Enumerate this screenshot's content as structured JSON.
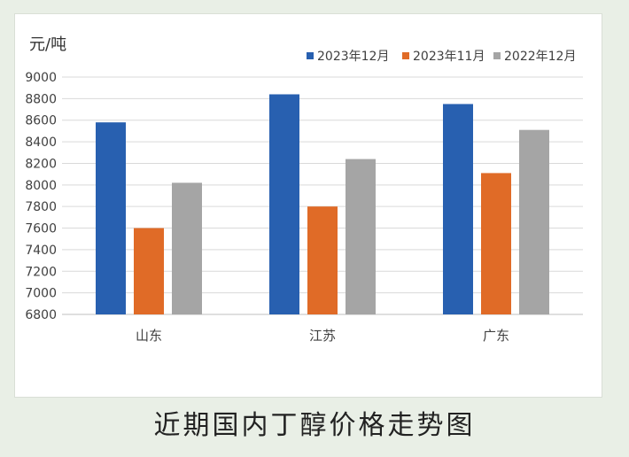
{
  "caption": "近期国内丁醇价格走势图",
  "chart_data": {
    "type": "bar",
    "title": "",
    "ylabel": "元/吨",
    "xlabel": "",
    "categories": [
      "山东",
      "江苏",
      "广东"
    ],
    "ylim": [
      6800,
      9000
    ],
    "yticks": [
      6800,
      7000,
      7200,
      7400,
      7600,
      7800,
      8000,
      8200,
      8400,
      8600,
      8800,
      9000
    ],
    "grid": true,
    "legend_position": "top-right",
    "series": [
      {
        "name": "2023年12月",
        "color": "#2860b0",
        "values": [
          8580,
          8840,
          8750
        ]
      },
      {
        "name": "2023年11月",
        "color": "#e06b27",
        "values": [
          7600,
          7800,
          8110
        ]
      },
      {
        "name": "2022年12月",
        "color": "#a5a5a5",
        "values": [
          8020,
          8240,
          8510
        ]
      }
    ]
  }
}
